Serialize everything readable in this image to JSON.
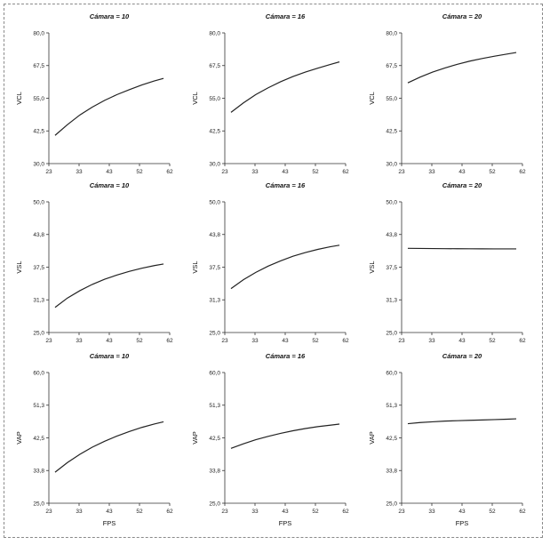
{
  "chart_data": [
    {
      "type": "line",
      "title": "Cámara = 10",
      "xlabel": "",
      "ylabel": "VCL",
      "xticks": [
        "23",
        "33",
        "43",
        "52",
        "62"
      ],
      "yticks": [
        "30,0",
        "42,5",
        "55,0",
        "67,5",
        "80,0"
      ],
      "xlim": [
        23,
        62
      ],
      "ylim": [
        30,
        80
      ],
      "x": [
        25,
        29,
        33,
        37,
        41,
        45,
        49,
        53,
        57,
        60
      ],
      "y": [
        40.8,
        44.9,
        48.6,
        51.6,
        54.2,
        56.4,
        58.3,
        60.1,
        61.6,
        62.6
      ]
    },
    {
      "type": "line",
      "title": "Cámara = 16",
      "xlabel": "",
      "ylabel": "VCL",
      "xticks": [
        "23",
        "33",
        "43",
        "52",
        "62"
      ],
      "yticks": [
        "30,0",
        "42,5",
        "55,0",
        "67,5",
        "80,0"
      ],
      "xlim": [
        23,
        62
      ],
      "ylim": [
        30,
        80
      ],
      "x": [
        25,
        29,
        33,
        37,
        41,
        45,
        49,
        53,
        57,
        60
      ],
      "y": [
        49.6,
        53.2,
        56.4,
        59.0,
        61.3,
        63.3,
        65.0,
        66.5,
        67.9,
        68.9
      ]
    },
    {
      "type": "line",
      "title": "Cámara = 20",
      "xlabel": "",
      "ylabel": "VCL",
      "xticks": [
        "23",
        "33",
        "43",
        "52",
        "62"
      ],
      "yticks": [
        "30,0",
        "42,5",
        "55,0",
        "67,5",
        "80,0"
      ],
      "xlim": [
        23,
        62
      ],
      "ylim": [
        30,
        80
      ],
      "x": [
        25,
        29,
        33,
        37,
        41,
        45,
        49,
        53,
        57,
        60
      ],
      "y": [
        60.9,
        63.1,
        65.0,
        66.6,
        68.0,
        69.2,
        70.2,
        71.1,
        71.9,
        72.5
      ]
    },
    {
      "type": "line",
      "title": "Cámara = 10",
      "xlabel": "",
      "ylabel": "VSL",
      "xticks": [
        "23",
        "33",
        "43",
        "52",
        "62"
      ],
      "yticks": [
        "25,0",
        "31,3",
        "37,5",
        "43,8",
        "50,0"
      ],
      "xlim": [
        23,
        62
      ],
      "ylim": [
        25,
        50
      ],
      "x": [
        25,
        29,
        33,
        37,
        41,
        45,
        49,
        53,
        57,
        60
      ],
      "y": [
        29.8,
        31.6,
        33.0,
        34.2,
        35.2,
        36.0,
        36.7,
        37.3,
        37.8,
        38.1
      ]
    },
    {
      "type": "line",
      "title": "Cámara = 16",
      "xlabel": "",
      "ylabel": "VSL",
      "xticks": [
        "23",
        "33",
        "43",
        "52",
        "62"
      ],
      "yticks": [
        "25,0",
        "31,3",
        "37,5",
        "43,8",
        "50,0"
      ],
      "xlim": [
        23,
        62
      ],
      "ylim": [
        25,
        50
      ],
      "x": [
        25,
        29,
        33,
        37,
        41,
        45,
        49,
        53,
        57,
        60
      ],
      "y": [
        33.4,
        35.1,
        36.5,
        37.7,
        38.7,
        39.6,
        40.3,
        40.9,
        41.4,
        41.7
      ]
    },
    {
      "type": "line",
      "title": "Cámara = 20",
      "xlabel": "",
      "ylabel": "VSL",
      "xticks": [
        "23",
        "33",
        "43",
        "52",
        "62"
      ],
      "yticks": [
        "25,0",
        "31,3",
        "37,5",
        "43,8",
        "50,0"
      ],
      "xlim": [
        23,
        62
      ],
      "ylim": [
        25,
        50
      ],
      "x": [
        25,
        29,
        33,
        37,
        41,
        45,
        49,
        53,
        57,
        60
      ],
      "y": [
        41.1,
        41.08,
        41.06,
        41.04,
        41.03,
        41.02,
        41.01,
        41.0,
        41.0,
        41.0
      ]
    },
    {
      "type": "line",
      "title": "Cámara = 10",
      "xlabel": "FPS",
      "ylabel": "VAP",
      "xticks": [
        "23",
        "33",
        "43",
        "52",
        "62"
      ],
      "yticks": [
        "25,0",
        "33,8",
        "42,5",
        "51,3",
        "60,0"
      ],
      "xlim": [
        23,
        62
      ],
      "ylim": [
        25,
        60
      ],
      "x": [
        25,
        29,
        33,
        37,
        41,
        45,
        49,
        53,
        57,
        60
      ],
      "y": [
        33.3,
        35.9,
        38.1,
        40.0,
        41.6,
        43.0,
        44.2,
        45.3,
        46.2,
        46.8
      ]
    },
    {
      "type": "line",
      "title": "Cámara = 16",
      "xlabel": "FPS",
      "ylabel": "VAP",
      "xticks": [
        "23",
        "33",
        "43",
        "52",
        "62"
      ],
      "yticks": [
        "25,0",
        "33,8",
        "42,5",
        "51,3",
        "60,0"
      ],
      "xlim": [
        23,
        62
      ],
      "ylim": [
        25,
        60
      ],
      "x": [
        25,
        29,
        33,
        37,
        41,
        45,
        49,
        53,
        57,
        60
      ],
      "y": [
        39.7,
        40.9,
        42.0,
        42.9,
        43.7,
        44.4,
        45.0,
        45.5,
        45.9,
        46.2
      ]
    },
    {
      "type": "line",
      "title": "Cámara = 20",
      "xlabel": "FPS",
      "ylabel": "VAP",
      "xticks": [
        "23",
        "33",
        "43",
        "52",
        "62"
      ],
      "yticks": [
        "25,0",
        "33,8",
        "42,5",
        "51,3",
        "60,0"
      ],
      "xlim": [
        23,
        62
      ],
      "ylim": [
        25,
        60
      ],
      "x": [
        25,
        29,
        33,
        37,
        41,
        45,
        49,
        53,
        57,
        60
      ],
      "y": [
        46.3,
        46.6,
        46.8,
        47.0,
        47.1,
        47.2,
        47.3,
        47.4,
        47.5,
        47.6
      ]
    }
  ],
  "colors": {
    "line": "#222222",
    "axis": "#333333",
    "background": "#ffffff"
  }
}
